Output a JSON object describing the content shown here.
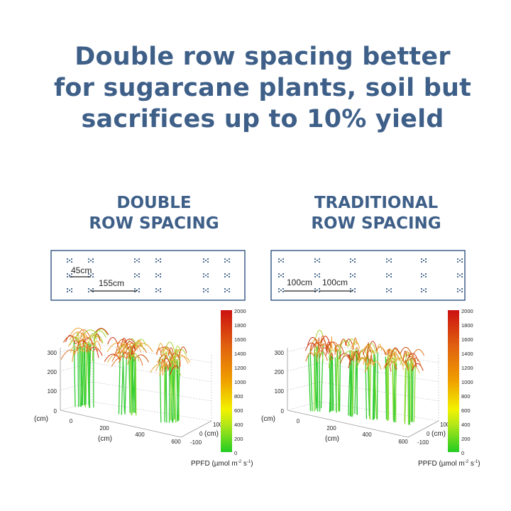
{
  "title": {
    "lines": [
      "Double row spacing better",
      "for sugarcane plants, soil but",
      "sacrifices up to 10% yield"
    ],
    "color": "#3e5f88"
  },
  "panels": [
    {
      "heading": [
        "DOUBLE",
        "ROW SPACING"
      ],
      "spacing_labels": [
        "45cm",
        "155cm"
      ],
      "clumps": 3
    },
    {
      "heading": [
        "TRADITIONAL",
        "ROW SPACING"
      ],
      "spacing_labels": [
        "100cm",
        "100cm"
      ],
      "clumps": 6
    }
  ],
  "plot": {
    "z_ticks": [
      "300",
      "200",
      "100",
      "0"
    ],
    "z_label": "(cm)",
    "x_ticks": [
      "0",
      "200",
      "400",
      "600"
    ],
    "x_label": "(cm)",
    "y_ticks": [
      "100",
      "0",
      "-100"
    ],
    "y_label": "(cm)",
    "colorbar_ticks": [
      "2000",
      "1800",
      "1600",
      "1400",
      "1200",
      "1000",
      "800",
      "600",
      "400",
      "200",
      "0"
    ],
    "colorbar_label": {
      "main": "PPFD (µmol m",
      "sup1": "-2",
      "mid": " s",
      "sup2": "-1",
      "end": ")"
    },
    "colorbar_colors": {
      "low": "#22cc22",
      "mid": "#f2f200",
      "high": "#cc1111"
    }
  }
}
